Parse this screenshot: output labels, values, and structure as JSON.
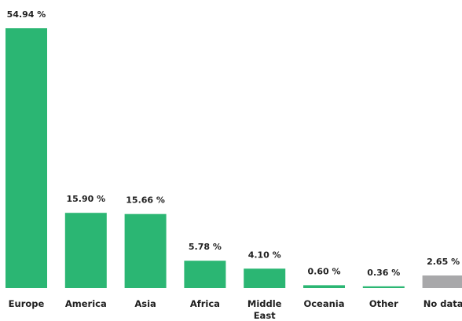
{
  "chart_data": {
    "type": "bar",
    "categories": [
      "Europe",
      "America",
      "Asia",
      "Africa",
      "Middle East",
      "Oceania",
      "Other",
      "No data"
    ],
    "category_lines": [
      [
        "Europe"
      ],
      [
        "America"
      ],
      [
        "Asia"
      ],
      [
        "Africa"
      ],
      [
        "Middle",
        "East"
      ],
      [
        "Oceania"
      ],
      [
        "Other"
      ],
      [
        "No data"
      ]
    ],
    "values": [
      54.94,
      15.9,
      15.66,
      5.78,
      4.1,
      0.6,
      0.36,
      2.65
    ],
    "value_labels": [
      "54.94 %",
      "15.90 %",
      "15.66 %",
      "5.78 %",
      "4.10 %",
      "0.60 %",
      "0.36 %",
      "2.65 %"
    ],
    "bar_colors": [
      "#2bb673",
      "#2bb673",
      "#2bb673",
      "#2bb673",
      "#2bb673",
      "#2bb673",
      "#2bb673",
      "#a8a8aa"
    ],
    "title": "",
    "xlabel": "",
    "ylabel": "",
    "ylim": [
      0,
      54.94
    ],
    "grid": false,
    "legend": "none"
  }
}
